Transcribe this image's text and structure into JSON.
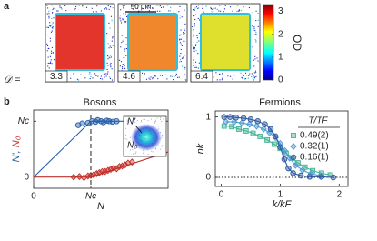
{
  "panel_a": {
    "label": "a",
    "scale_bar": "50 μm",
    "d_symbol": "𝒟 =",
    "images": [
      {
        "d": "3.3",
        "color": "#e3352b"
      },
      {
        "d": "4.6",
        "color": "#f0872c"
      },
      {
        "d": "6.4",
        "color": "#dfe02e"
      }
    ],
    "colorbar": {
      "label": "OD",
      "lim": [
        0,
        3.3
      ],
      "ticks": [
        0,
        1,
        2,
        3
      ]
    }
  },
  "panel_b_label": "b",
  "chart_data": [
    {
      "type": "scatter",
      "title": "Bosons",
      "xlabel": "N",
      "ylabel_parts": [
        {
          "text": "N′,",
          "color": "#2a5fa8"
        },
        {
          "text": "N₀",
          "color": "#c0302a"
        }
      ],
      "xlim": [
        0,
        2.35
      ],
      "ylim": [
        -0.2,
        1.2
      ],
      "xticks": [
        0,
        {
          "value": 1,
          "label": "Nc"
        }
      ],
      "yticks": [
        0,
        {
          "value": 1,
          "label": "Nc"
        }
      ],
      "threshold": 1,
      "inset_labels": [
        {
          "text": "N′",
          "color": "#2a5fa8"
        },
        {
          "text": "N₀",
          "color": "#c0302a"
        }
      ],
      "series": [
        {
          "style": "line",
          "color": "#2a5fa8",
          "x": [
            0,
            1,
            2.35
          ],
          "values": [
            0,
            1,
            1
          ]
        },
        {
          "style": "line",
          "color": "#c0302a",
          "x": [
            0,
            1,
            2.35
          ],
          "values": [
            0,
            0,
            0.45
          ]
        },
        {
          "style": "circle",
          "color": "#2a5fa8",
          "x": [
            0.78,
            0.85,
            0.95,
            1.02,
            1.08,
            1.12,
            1.18,
            1.22,
            1.28,
            1.32,
            1.38,
            1.45
          ],
          "values": [
            0.93,
            0.96,
            0.97,
            1.0,
            0.99,
            1.02,
            1.0,
            0.98,
            1.01,
            1.0,
            0.99,
            1.0
          ]
        },
        {
          "style": "diamond",
          "color": "#c0302a",
          "x": [
            0.7,
            0.8,
            0.88,
            0.95,
            1.0,
            1.05,
            1.1,
            1.15,
            1.2,
            1.25,
            1.3,
            1.35,
            1.4,
            1.45,
            1.5,
            1.55,
            1.6,
            1.65,
            1.72
          ],
          "values": [
            0,
            0.01,
            -0.01,
            0.02,
            0.03,
            0.04,
            0.06,
            0.08,
            0.1,
            0.1,
            0.12,
            0.14,
            0.16,
            0.15,
            0.19,
            0.2,
            0.22,
            0.25,
            0.27
          ]
        }
      ]
    },
    {
      "type": "scatter",
      "title": "Fermions",
      "xlabel": "k/kF",
      "ylabel": "nk",
      "xlim": [
        -0.1,
        2.15
      ],
      "ylim": [
        -0.15,
        1.1
      ],
      "xticks": [
        0,
        1,
        2
      ],
      "yticks": [
        0,
        1
      ],
      "zero_line": true,
      "legend_title": "T/TF",
      "series": [
        {
          "name": "0.49(2)",
          "style": "square",
          "color": "#45b394",
          "x": [
            0.05,
            0.18,
            0.3,
            0.42,
            0.54,
            0.66,
            0.78,
            0.9,
            1.0,
            1.1,
            1.2,
            1.3,
            1.42,
            1.55,
            1.7,
            1.85
          ],
          "values": [
            0.85,
            0.84,
            0.8,
            0.77,
            0.73,
            0.68,
            0.62,
            0.55,
            0.48,
            0.4,
            0.32,
            0.24,
            0.17,
            0.11,
            0.07,
            0.04
          ]
        },
        {
          "name": "0.32(1)",
          "style": "diamond",
          "color": "#4d9bd6",
          "x": [
            0.08,
            0.22,
            0.35,
            0.48,
            0.6,
            0.72,
            0.82,
            0.92,
            1.0,
            1.08,
            1.16,
            1.26,
            1.38,
            1.52,
            1.68
          ],
          "values": [
            0.92,
            0.92,
            0.9,
            0.88,
            0.85,
            0.8,
            0.74,
            0.66,
            0.56,
            0.44,
            0.32,
            0.2,
            0.12,
            0.06,
            0.03
          ]
        },
        {
          "name": "0.16(1)",
          "style": "circle",
          "color": "#2f5aa0",
          "x": [
            0.05,
            0.15,
            0.25,
            0.38,
            0.5,
            0.62,
            0.74,
            0.84,
            0.92,
            1.0,
            1.07,
            1.14,
            1.22,
            1.35,
            1.5,
            1.7,
            1.9
          ],
          "values": [
            1.0,
            1.0,
            0.99,
            0.98,
            0.96,
            0.93,
            0.88,
            0.8,
            0.68,
            0.5,
            0.3,
            0.15,
            0.07,
            0.03,
            0.01,
            0.01,
            0.0
          ]
        }
      ]
    }
  ]
}
